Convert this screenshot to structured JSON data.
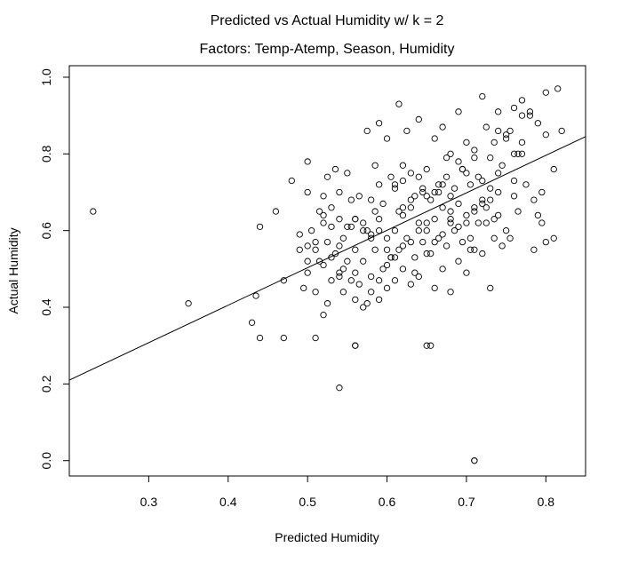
{
  "chart_data": {
    "type": "scatter",
    "title": "Predicted vs Actual Humidity w/ k = 2",
    "subtitle": "Factors: Temp-Atemp, Season, Humidity",
    "xlabel": "Predicted Humidity",
    "ylabel": "Actual Humidity",
    "xlim": [
      0.2,
      0.85
    ],
    "ylim": [
      -0.04,
      1.03
    ],
    "xticks": [
      0.3,
      0.4,
      0.5,
      0.6,
      0.7,
      0.8
    ],
    "xtick_labels": [
      "0.3",
      "0.4",
      "0.5",
      "0.6",
      "0.7",
      "0.8"
    ],
    "yticks": [
      0.0,
      0.2,
      0.4,
      0.6,
      0.8,
      1.0
    ],
    "ytick_labels": [
      "0.0",
      "0.2",
      "0.4",
      "0.6",
      "0.8",
      "1.0"
    ],
    "grid": false,
    "legend": "none",
    "point_style": "open circle",
    "colors": {
      "points": "#000000",
      "line": "#000000",
      "background": "#ffffff"
    },
    "regression_line": {
      "x": [
        0.2,
        0.85
      ],
      "y": [
        0.21,
        0.845
      ]
    },
    "x": [
      0.23,
      0.35,
      0.43,
      0.435,
      0.44,
      0.44,
      0.46,
      0.47,
      0.47,
      0.48,
      0.49,
      0.495,
      0.5,
      0.5,
      0.5,
      0.505,
      0.51,
      0.51,
      0.51,
      0.515,
      0.52,
      0.52,
      0.52,
      0.525,
      0.525,
      0.53,
      0.53,
      0.535,
      0.535,
      0.54,
      0.54,
      0.54,
      0.545,
      0.545,
      0.55,
      0.55,
      0.555,
      0.555,
      0.56,
      0.56,
      0.56,
      0.565,
      0.565,
      0.57,
      0.57,
      0.575,
      0.575,
      0.58,
      0.58,
      0.58,
      0.585,
      0.585,
      0.59,
      0.59,
      0.59,
      0.595,
      0.595,
      0.6,
      0.6,
      0.6,
      0.605,
      0.605,
      0.61,
      0.61,
      0.61,
      0.615,
      0.615,
      0.62,
      0.62,
      0.62,
      0.625,
      0.625,
      0.63,
      0.63,
      0.63,
      0.635,
      0.635,
      0.64,
      0.64,
      0.64,
      0.645,
      0.645,
      0.65,
      0.65,
      0.65,
      0.655,
      0.655,
      0.66,
      0.66,
      0.66,
      0.665,
      0.665,
      0.67,
      0.67,
      0.67,
      0.675,
      0.675,
      0.68,
      0.68,
      0.68,
      0.685,
      0.685,
      0.69,
      0.69,
      0.69,
      0.695,
      0.695,
      0.7,
      0.7,
      0.7,
      0.705,
      0.705,
      0.71,
      0.71,
      0.71,
      0.715,
      0.715,
      0.72,
      0.72,
      0.72,
      0.725,
      0.725,
      0.73,
      0.73,
      0.735,
      0.735,
      0.74,
      0.74,
      0.745,
      0.745,
      0.75,
      0.75,
      0.755,
      0.76,
      0.76,
      0.765,
      0.77,
      0.77,
      0.775,
      0.78,
      0.785,
      0.79,
      0.79,
      0.795,
      0.8,
      0.8,
      0.81,
      0.81,
      0.815,
      0.82,
      0.54,
      0.56,
      0.655,
      0.71,
      0.515,
      0.545,
      0.575,
      0.605,
      0.635,
      0.665,
      0.695,
      0.725,
      0.755,
      0.785,
      0.53,
      0.56,
      0.59,
      0.62,
      0.65,
      0.68,
      0.71,
      0.74,
      0.77,
      0.8,
      0.525,
      0.555,
      0.585,
      0.615,
      0.645,
      0.675,
      0.705,
      0.735,
      0.765,
      0.795,
      0.49,
      0.5,
      0.51,
      0.52,
      0.53,
      0.54,
      0.55,
      0.56,
      0.57,
      0.58,
      0.59,
      0.6,
      0.61,
      0.62,
      0.63,
      0.64,
      0.65,
      0.66,
      0.67,
      0.68,
      0.69,
      0.7,
      0.71,
      0.72,
      0.73,
      0.74,
      0.75,
      0.76,
      0.77,
      0.78,
      0.6,
      0.62,
      0.64,
      0.66,
      0.68,
      0.7,
      0.72,
      0.74,
      0.76,
      0.58,
      0.56,
      0.54,
      0.52,
      0.5,
      0.57,
      0.59,
      0.61,
      0.63,
      0.65,
      0.67,
      0.69,
      0.71,
      0.73
    ],
    "y": [
      0.65,
      0.41,
      0.36,
      0.43,
      0.32,
      0.61,
      0.65,
      0.47,
      0.32,
      0.73,
      0.59,
      0.45,
      0.49,
      0.7,
      0.78,
      0.6,
      0.44,
      0.55,
      0.32,
      0.52,
      0.38,
      0.62,
      0.69,
      0.41,
      0.57,
      0.47,
      0.66,
      0.54,
      0.76,
      0.49,
      0.63,
      0.7,
      0.44,
      0.58,
      0.52,
      0.75,
      0.47,
      0.68,
      0.3,
      0.55,
      0.63,
      0.46,
      0.69,
      0.52,
      0.62,
      0.41,
      0.86,
      0.48,
      0.59,
      0.68,
      0.55,
      0.65,
      0.42,
      0.6,
      0.88,
      0.5,
      0.67,
      0.45,
      0.58,
      0.84,
      0.53,
      0.74,
      0.47,
      0.6,
      0.72,
      0.55,
      0.93,
      0.5,
      0.64,
      0.77,
      0.58,
      0.86,
      0.46,
      0.66,
      0.75,
      0.53,
      0.69,
      0.48,
      0.62,
      0.89,
      0.57,
      0.71,
      0.3,
      0.6,
      0.76,
      0.54,
      0.68,
      0.45,
      0.63,
      0.84,
      0.58,
      0.72,
      0.5,
      0.66,
      0.87,
      0.56,
      0.74,
      0.44,
      0.62,
      0.8,
      0.6,
      0.71,
      0.52,
      0.67,
      0.91,
      0.57,
      0.76,
      0.49,
      0.64,
      0.83,
      0.58,
      0.72,
      0.0,
      0.55,
      0.79,
      0.62,
      0.74,
      0.54,
      0.68,
      0.95,
      0.62,
      0.87,
      0.45,
      0.71,
      0.58,
      0.83,
      0.64,
      0.91,
      0.56,
      0.77,
      0.6,
      0.85,
      0.58,
      0.69,
      0.92,
      0.65,
      0.83,
      0.94,
      0.72,
      0.9,
      0.55,
      0.88,
      0.64,
      0.62,
      0.57,
      0.96,
      0.58,
      0.76,
      0.97,
      0.86,
      0.19,
      0.3,
      0.3,
      0.0,
      0.65,
      0.5,
      0.6,
      0.53,
      0.49,
      0.7,
      0.76,
      0.66,
      0.86,
      0.68,
      0.61,
      0.63,
      0.72,
      0.73,
      0.69,
      0.63,
      0.65,
      0.75,
      0.8,
      0.85,
      0.74,
      0.61,
      0.77,
      0.65,
      0.7,
      0.79,
      0.55,
      0.63,
      0.8,
      0.7,
      0.55,
      0.52,
      0.57,
      0.64,
      0.53,
      0.56,
      0.61,
      0.49,
      0.6,
      0.58,
      0.63,
      0.55,
      0.71,
      0.66,
      0.68,
      0.74,
      0.62,
      0.7,
      0.72,
      0.69,
      0.78,
      0.75,
      0.81,
      0.73,
      0.79,
      0.86,
      0.84,
      0.8,
      0.9,
      0.91,
      0.51,
      0.56,
      0.6,
      0.57,
      0.65,
      0.62,
      0.67,
      0.7,
      0.73,
      0.44,
      0.42,
      0.48,
      0.51,
      0.56,
      0.4,
      0.47,
      0.53,
      0.57,
      0.54,
      0.59,
      0.61,
      0.66,
      0.68
    ]
  }
}
